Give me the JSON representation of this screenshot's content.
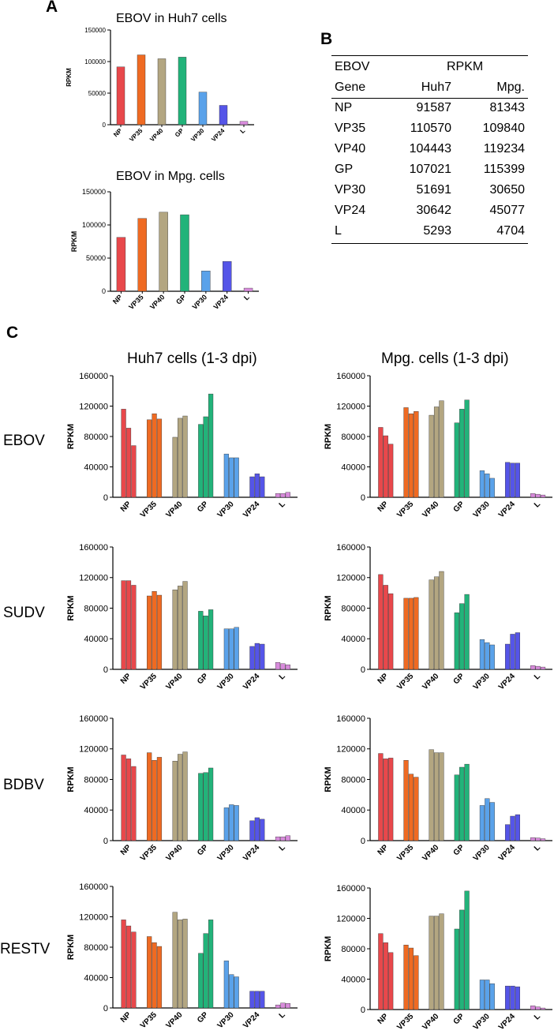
{
  "panels": {
    "A": "A",
    "B": "B",
    "C": "C"
  },
  "panel_c": {
    "col_titles": [
      "Huh7 cells (1-3 dpi)",
      "Mpg. cells (1-3 dpi)"
    ],
    "row_labels": [
      "EBOV",
      "SUDV",
      "BDBV",
      "RESTV"
    ]
  },
  "table_b": {
    "header_row1": {
      "col0": "EBOV",
      "span": "RPKM"
    },
    "header_row2": {
      "col0": "Gene",
      "col1": "Huh7",
      "col2": "Mpg."
    },
    "rows": [
      {
        "gene": "NP",
        "huh7": "91587",
        "mpg": "81343"
      },
      {
        "gene": "VP35",
        "huh7": "110570",
        "mpg": "109840"
      },
      {
        "gene": "VP40",
        "huh7": "104443",
        "mpg": "119234"
      },
      {
        "gene": "GP",
        "huh7": "107021",
        "mpg": "115399"
      },
      {
        "gene": "VP30",
        "huh7": "51691",
        "mpg": "30650"
      },
      {
        "gene": "VP24",
        "huh7": "30642",
        "mpg": "45077"
      },
      {
        "gene": "L",
        "huh7": "5293",
        "mpg": "4704"
      }
    ]
  },
  "gene_colors": [
    "#e8484b",
    "#ef6a22",
    "#b3a681",
    "#22b37a",
    "#5aa2ea",
    "#5555e8",
    "#d88bdc"
  ],
  "chart_data": [
    {
      "id": "A1",
      "type": "bar",
      "panel": "A",
      "title": "EBOV in Huh7 cells",
      "ylabel": "RPKM",
      "xlabel": "",
      "categories": [
        "NP",
        "VP35",
        "VP40",
        "GP",
        "VP30",
        "VP24",
        "L"
      ],
      "values": [
        91587,
        110570,
        104443,
        107021,
        51691,
        30642,
        5293
      ],
      "ylim": [
        0,
        150000
      ],
      "yticks": [
        "0",
        "50000",
        "100000",
        "150000"
      ]
    },
    {
      "id": "A2",
      "type": "bar",
      "panel": "A",
      "title": "EBOV in Mpg. cells",
      "ylabel": "RPKM",
      "xlabel": "",
      "categories": [
        "NP",
        "VP35",
        "VP40",
        "GP",
        "VP30",
        "VP24",
        "L"
      ],
      "values": [
        81343,
        109840,
        119234,
        115399,
        30650,
        45077,
        4704
      ],
      "ylim": [
        0,
        150000
      ],
      "yticks": [
        "0",
        "50000",
        "100000",
        "150000"
      ]
    },
    {
      "id": "C-EBOV-Huh7",
      "type": "bar",
      "panel": "C",
      "virus": "EBOV",
      "cells": "Huh7",
      "ylabel": "RPKM",
      "xlabel": "",
      "categories": [
        "NP",
        "VP35",
        "VP40",
        "GP",
        "VP30",
        "VP24",
        "L"
      ],
      "values": [
        [
          116000,
          91000,
          68000
        ],
        [
          102000,
          110000,
          103000
        ],
        [
          79000,
          104000,
          107000
        ],
        [
          96000,
          106000,
          136000
        ],
        [
          57000,
          52000,
          52000
        ],
        [
          27000,
          31000,
          27000
        ],
        [
          5000,
          5000,
          6500
        ]
      ],
      "ylim": [
        0,
        160000
      ],
      "yticks": [
        "0",
        "40000",
        "80000",
        "120000",
        "160000"
      ]
    },
    {
      "id": "C-EBOV-Mpg",
      "type": "bar",
      "panel": "C",
      "virus": "EBOV",
      "cells": "Mpg.",
      "ylabel": "RPKM",
      "xlabel": "",
      "categories": [
        "NP",
        "VP35",
        "VP40",
        "GP",
        "VP30",
        "VP24",
        "L"
      ],
      "values": [
        [
          92000,
          81000,
          70000
        ],
        [
          118000,
          110000,
          113000
        ],
        [
          108000,
          119000,
          127000
        ],
        [
          98000,
          116000,
          128000
        ],
        [
          35000,
          31000,
          25000
        ],
        [
          46000,
          45000,
          45000
        ],
        [
          5000,
          4000,
          3000
        ]
      ],
      "ylim": [
        0,
        160000
      ],
      "yticks": [
        "0",
        "40000",
        "80000",
        "120000",
        "160000"
      ]
    },
    {
      "id": "C-SUDV-Huh7",
      "type": "bar",
      "panel": "C",
      "virus": "SUDV",
      "cells": "Huh7",
      "ylabel": "RPKM",
      "xlabel": "",
      "categories": [
        "NP",
        "VP35",
        "VP40",
        "GP",
        "VP30",
        "VP24",
        "L"
      ],
      "values": [
        [
          116000,
          116000,
          110000
        ],
        [
          96000,
          102000,
          97000
        ],
        [
          104000,
          109000,
          115000
        ],
        [
          76000,
          70000,
          78000
        ],
        [
          53000,
          53000,
          55000
        ],
        [
          30000,
          34000,
          33000
        ],
        [
          9000,
          7500,
          6000
        ]
      ],
      "ylim": [
        0,
        160000
      ],
      "yticks": [
        "0",
        "40000",
        "80000",
        "120000",
        "160000"
      ]
    },
    {
      "id": "C-SUDV-Mpg",
      "type": "bar",
      "panel": "C",
      "virus": "SUDV",
      "cells": "Mpg.",
      "ylabel": "RPKM",
      "xlabel": "",
      "categories": [
        "NP",
        "VP35",
        "VP40",
        "GP",
        "VP30",
        "VP24",
        "L"
      ],
      "values": [
        [
          124000,
          110000,
          99000
        ],
        [
          93000,
          93000,
          94000
        ],
        [
          117000,
          121000,
          128000
        ],
        [
          74000,
          86000,
          98000
        ],
        [
          39000,
          35000,
          32000
        ],
        [
          33000,
          46000,
          48000
        ],
        [
          5000,
          4000,
          3000
        ]
      ],
      "ylim": [
        0,
        160000
      ],
      "yticks": [
        "0",
        "40000",
        "80000",
        "120000",
        "160000"
      ]
    },
    {
      "id": "C-BDBV-Huh7",
      "type": "bar",
      "panel": "C",
      "virus": "BDBV",
      "cells": "Huh7",
      "ylabel": "RPKM",
      "xlabel": "",
      "categories": [
        "NP",
        "VP35",
        "VP40",
        "GP",
        "VP30",
        "VP24",
        "L"
      ],
      "values": [
        [
          112000,
          107000,
          97000
        ],
        [
          115000,
          105000,
          109000
        ],
        [
          104000,
          113000,
          116000
        ],
        [
          88000,
          89000,
          95000
        ],
        [
          43000,
          47000,
          46000
        ],
        [
          26000,
          30000,
          28000
        ],
        [
          5000,
          5000,
          6500
        ]
      ],
      "ylim": [
        0,
        160000
      ],
      "yticks": [
        "0",
        "40000",
        "80000",
        "120000",
        "160000"
      ]
    },
    {
      "id": "C-BDBV-Mpg",
      "type": "bar",
      "panel": "C",
      "virus": "BDBV",
      "cells": "Mpg.",
      "ylabel": "RPKM",
      "xlabel": "",
      "categories": [
        "NP",
        "VP35",
        "VP40",
        "GP",
        "VP30",
        "VP24",
        "L"
      ],
      "values": [
        [
          114000,
          107000,
          108000
        ],
        [
          105000,
          87000,
          83000
        ],
        [
          119000,
          115000,
          115000
        ],
        [
          86000,
          96000,
          100000
        ],
        [
          46000,
          55000,
          50000
        ],
        [
          21000,
          32000,
          34000
        ],
        [
          4000,
          3500,
          2500
        ]
      ],
      "ylim": [
        0,
        160000
      ],
      "yticks": [
        "0",
        "40000",
        "80000",
        "120000",
        "160000"
      ]
    },
    {
      "id": "C-RESTV-Huh7",
      "type": "bar",
      "panel": "C",
      "virus": "RESTV",
      "cells": "Huh7",
      "ylabel": "RPKM",
      "xlabel": "",
      "categories": [
        "NP",
        "VP35",
        "VP40",
        "GP",
        "VP30",
        "VP24",
        "L"
      ],
      "values": [
        [
          116000,
          108000,
          100000
        ],
        [
          94000,
          86000,
          81000
        ],
        [
          126000,
          116000,
          117000
        ],
        [
          72000,
          98000,
          116000
        ],
        [
          62000,
          44000,
          41000
        ],
        [
          22000,
          22000,
          22000
        ],
        [
          4000,
          6500,
          6000
        ]
      ],
      "ylim": [
        0,
        160000
      ],
      "yticks": [
        "0",
        "40000",
        "80000",
        "120000",
        "160000"
      ]
    },
    {
      "id": "C-RESTV-Mpg",
      "type": "bar",
      "panel": "C",
      "virus": "RESTV",
      "cells": "Mpg.",
      "ylabel": "RPKM",
      "xlabel": "",
      "categories": [
        "NP",
        "VP35",
        "VP40",
        "GP",
        "VP30",
        "VP24",
        "L"
      ],
      "values": [
        [
          100000,
          88000,
          75000
        ],
        [
          85000,
          81000,
          71000
        ],
        [
          123000,
          123000,
          126000
        ],
        [
          106000,
          131000,
          156000
        ],
        [
          39000,
          39000,
          34000
        ],
        [
          31000,
          31000,
          30000
        ],
        [
          5000,
          3500,
          2000
        ]
      ],
      "ylim": [
        0,
        160000
      ],
      "yticks": [
        "0",
        "40000",
        "80000",
        "120000",
        "160000"
      ]
    }
  ]
}
